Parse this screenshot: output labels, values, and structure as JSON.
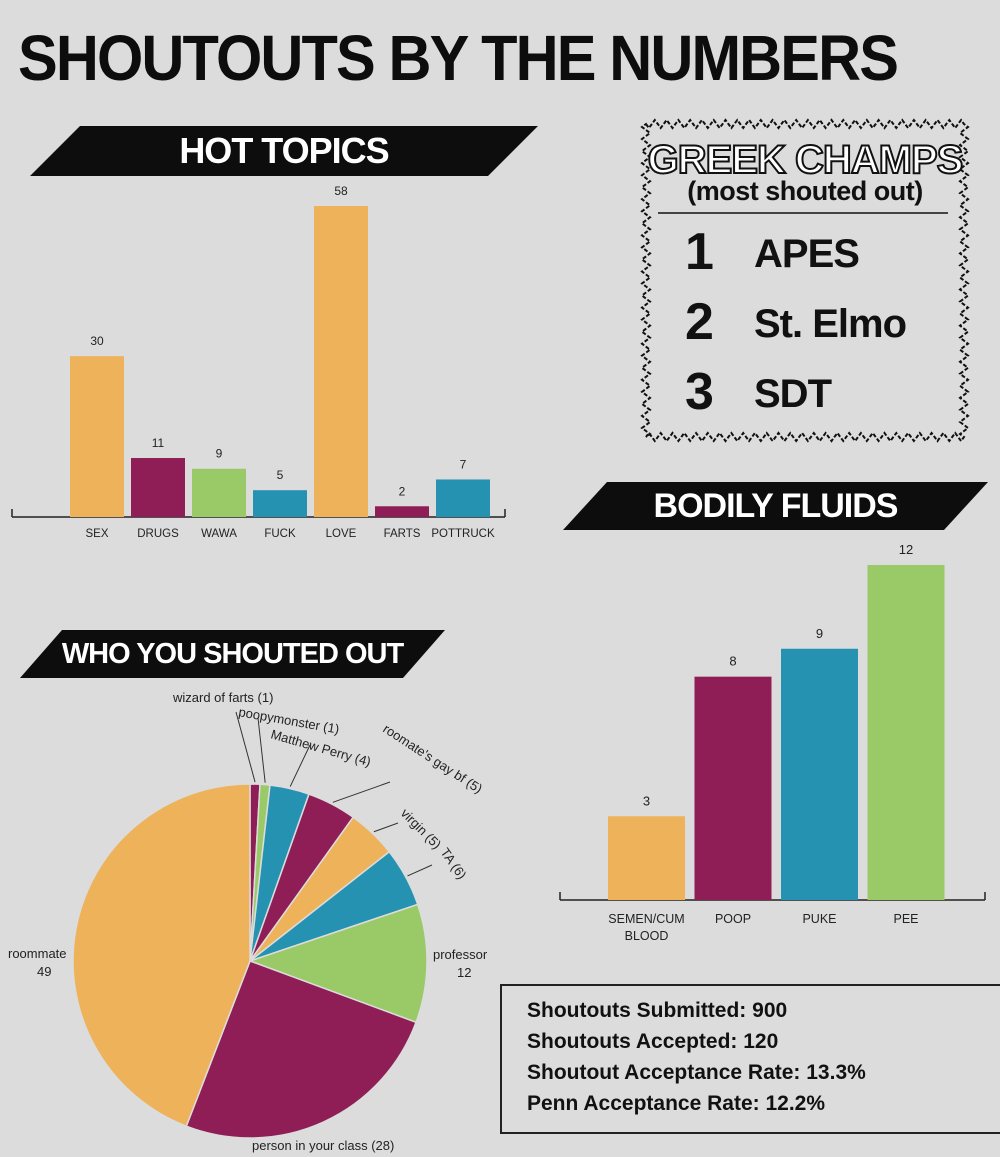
{
  "title": "SHOUTOUTS BY THE NUMBERS",
  "colors": {
    "orange": "#edb25a",
    "maroon": "#8e1e55",
    "green": "#9ac968",
    "teal": "#2692b1",
    "black": "#0d0d0d",
    "background": "#dcdcdc"
  },
  "banners": {
    "hot_topics": "HOT TOPICS",
    "bodily_fluids": "BODILY FLUIDS",
    "who": "WHO YOU SHOUTED OUT"
  },
  "greek_champs": {
    "title": "GREEK CHAMPS",
    "subtitle": "(most shouted out)",
    "ranks": [
      {
        "rank": "1",
        "name": "APES"
      },
      {
        "rank": "2",
        "name": "St. Elmo"
      },
      {
        "rank": "3",
        "name": "SDT"
      }
    ]
  },
  "stats": [
    "Shoutouts Submitted: 900",
    "Shoutouts Accepted: 120",
    "Shoutout Acceptance Rate: 13.3%",
    "Penn Acceptance Rate: 12.2%"
  ],
  "chart_data": [
    {
      "type": "bar",
      "title": "HOT TOPICS",
      "categories": [
        "SEX",
        "DRUGS",
        "WAWA",
        "FUCK",
        "LOVE",
        "FARTS",
        "POTTRUCK"
      ],
      "values": [
        30,
        11,
        9,
        5,
        58,
        2,
        7
      ],
      "bar_colors": [
        "#edb25a",
        "#8e1e55",
        "#9ac968",
        "#2692b1",
        "#edb25a",
        "#8e1e55",
        "#2692b1"
      ],
      "ylim": [
        0,
        58
      ],
      "grid": false,
      "data_labels": true
    },
    {
      "type": "bar",
      "title": "BODILY FLUIDS",
      "categories": [
        "SEMEN/CUM BLOOD",
        "POOP",
        "PUKE",
        "PEE"
      ],
      "values": [
        3,
        8,
        9,
        12
      ],
      "bar_colors": [
        "#edb25a",
        "#8e1e55",
        "#2692b1",
        "#9ac968"
      ],
      "ylim": [
        0,
        12
      ],
      "grid": false,
      "data_labels": true
    },
    {
      "type": "pie",
      "title": "WHO YOU SHOUTED OUT",
      "slices": [
        {
          "label": "wizard of farts (1)",
          "value": 1,
          "color": "#8e1e55"
        },
        {
          "label": "poopymonster (1)",
          "value": 1,
          "color": "#9ac968"
        },
        {
          "label": "Matthew Perry (4)",
          "value": 4,
          "color": "#2692b1"
        },
        {
          "label": "roomate's gay bf (5)",
          "value": 5,
          "color": "#8e1e55"
        },
        {
          "label": "virgin (5)",
          "value": 5,
          "color": "#edb25a"
        },
        {
          "label": "TA (6)",
          "value": 6,
          "color": "#2692b1"
        },
        {
          "label": "professor 12",
          "value": 12,
          "color": "#9ac968"
        },
        {
          "label": "person in your class (28)",
          "value": 28,
          "color": "#8e1e55"
        },
        {
          "label": "roommate 49",
          "value": 49,
          "color": "#edb25a"
        }
      ]
    }
  ]
}
